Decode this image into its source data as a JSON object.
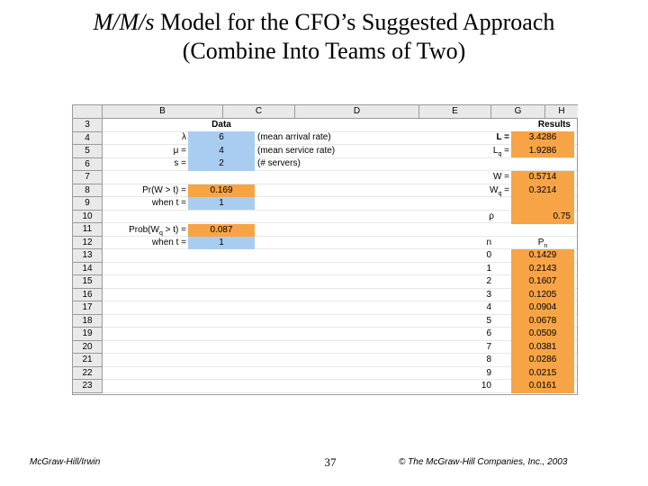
{
  "title": {
    "model": "M/M/s",
    "rest": " Model for the CFO’s Suggested Approach",
    "line2": "(Combine Into Teams of Two)"
  },
  "columns": [
    "B",
    "C",
    "D",
    "E",
    "G",
    "H"
  ],
  "rows": [
    "3",
    "4",
    "5",
    "6",
    "7",
    "8",
    "9",
    "10",
    "11",
    "12",
    "13",
    "14",
    "15",
    "16",
    "17",
    "18",
    "19",
    "20",
    "21",
    "22",
    "23"
  ],
  "data_header": "Data",
  "results_header": "Results",
  "inputs": {
    "lambda_label": "λ",
    "lambda_value": "6",
    "lambda_desc": "(mean arrival rate)",
    "mu_label": "μ =",
    "mu_value": "4",
    "mu_desc": "(mean service rate)",
    "s_label": "s =",
    "s_value": "2",
    "s_desc": "(# servers)"
  },
  "prob_w": {
    "label": "Pr(W > t) =",
    "value": "0.169",
    "t_label": "when t =",
    "t_value": "1"
  },
  "prob_wq": {
    "label": "Prob(Wq > t) =",
    "value": "0.087",
    "t_label": "when t =",
    "t_value": "1"
  },
  "results": {
    "L_label": "L =",
    "L_value": "3.4286",
    "Lq_label": "Lq =",
    "Lq_value": "1.9286",
    "W_label": "W =",
    "W_value": "0.5714",
    "Wq_label": "Wq =",
    "Wq_value": "0.3214",
    "rho_label": "ρ",
    "rho_value": "0.75"
  },
  "pn_table": {
    "n_header": "n",
    "p_header": "Pn",
    "n": [
      "0",
      "1",
      "2",
      "3",
      "4",
      "5",
      "6",
      "7",
      "8",
      "9",
      "10"
    ],
    "p": [
      "0.1429",
      "0.2143",
      "0.1607",
      "0.1205",
      "0.0904",
      "0.0678",
      "0.0509",
      "0.0381",
      "0.0286",
      "0.0215",
      "0.0161"
    ]
  },
  "footer": {
    "left": "McGraw-Hill/Irwin",
    "page": "37",
    "right": "© The McGraw-Hill Companies, Inc., 2003"
  }
}
